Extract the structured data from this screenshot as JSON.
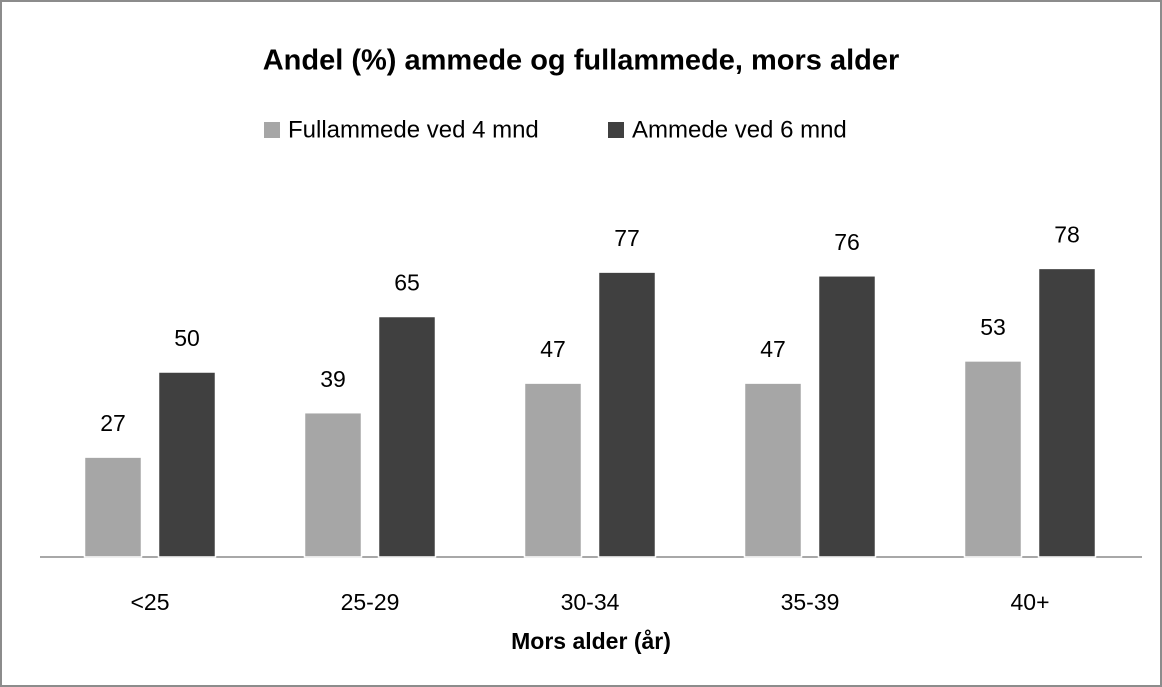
{
  "chart_data": {
    "type": "bar",
    "title": "Andel (%) ammede og fullammede, mors alder",
    "x_label": "Mors alder (år)",
    "categories": [
      "<25",
      "25-29",
      "30-34",
      "35-39",
      "40+"
    ],
    "series": [
      {
        "name": "Fullammede ved 4 mnd",
        "color": "#a6a6a6",
        "values": [
          27,
          39,
          47,
          47,
          53
        ]
      },
      {
        "name": "Ammede ved 6 mnd",
        "color": "#404040",
        "values": [
          50,
          65,
          77,
          76,
          78
        ]
      }
    ],
    "ylim": [
      0,
      100
    ],
    "legend": "top"
  }
}
